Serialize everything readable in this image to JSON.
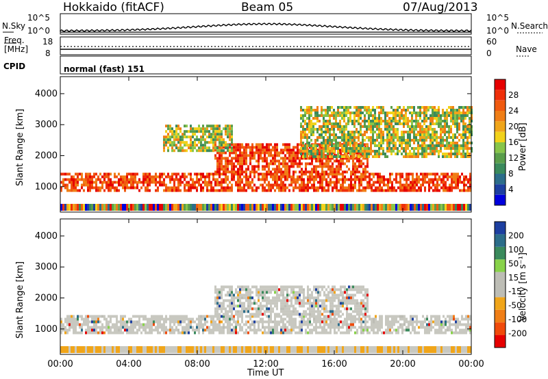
{
  "header": {
    "station": "Hokkaido (fitACF)",
    "beam": "Beam 05",
    "date": "07/Aug/2013"
  },
  "strips": {
    "nsky": {
      "label": "N.Sky",
      "tick_top": "10^5",
      "tick_bottom": "10^0"
    },
    "nsearch": {
      "label": "N.Search",
      "tick_top": "10^5",
      "tick_bottom": "10^0"
    },
    "freq": {
      "label_line1": "Freq.",
      "label_line2": "[MHz]",
      "tick_top": "18",
      "tick_bottom": "8"
    },
    "nave": {
      "label": "Nave",
      "tick_top": "60",
      "tick_bottom": "0"
    },
    "cpid": {
      "label": "CPID",
      "value": "normal (fast) 151"
    }
  },
  "chart_data": [
    {
      "type": "heatmap",
      "panel": "power",
      "ylabel": "Slant Range [km]",
      "xlabel": "",
      "y_ticks": [
        "1000",
        "2000",
        "3000",
        "4000"
      ],
      "x_ticks": [
        "00:00",
        "04:00",
        "08:00",
        "12:00",
        "16:00",
        "20:00",
        "00:00"
      ],
      "ylim": [
        180,
        4550
      ],
      "xlim_hours": [
        0,
        24
      ],
      "colorbar": {
        "label": "Power [dB]",
        "ticks": [
          "28",
          "24",
          "20",
          "16",
          "12",
          "8",
          "4"
        ],
        "colors": [
          "#0000dd",
          "#1d3fa0",
          "#2c6d8a",
          "#3a8a5c",
          "#5a9e4b",
          "#88c54a",
          "#f2d21a",
          "#f0a51a",
          "#f07e16",
          "#f05a10",
          "#ef2f0a",
          "#e60000"
        ]
      },
      "bands": [
        {
          "start": 0,
          "end": 24,
          "range_start": 850,
          "range_end": 1450,
          "level": "high"
        },
        {
          "start": 9,
          "end": 18,
          "range_start": 1500,
          "range_end": 2400,
          "level": "high"
        },
        {
          "start": 6,
          "end": 10,
          "range_start": 2200,
          "range_end": 3000,
          "level": "mid"
        },
        {
          "start": 14,
          "end": 24,
          "range_start": 2000,
          "range_end": 3600,
          "level": "mid"
        }
      ]
    },
    {
      "type": "heatmap",
      "panel": "velocity",
      "ylabel": "Slant Range [km]",
      "xlabel": "Time UT",
      "y_ticks": [
        "1000",
        "2000",
        "3000",
        "4000"
      ],
      "x_ticks": [
        "00:00",
        "04:00",
        "08:00",
        "12:00",
        "16:00",
        "20:00",
        "00:00"
      ],
      "ylim": [
        180,
        4550
      ],
      "xlim_hours": [
        0,
        24
      ],
      "colorbar": {
        "label": "Velocity [m s⁻¹]",
        "ticks": [
          "200",
          "100",
          "50",
          "15",
          "-15",
          "-50",
          "-100",
          "-200"
        ],
        "colors": [
          "#e60000",
          "#f04a0a",
          "#f07e16",
          "#f0a51a",
          "#bdbdb5",
          "#bdbdb5",
          "#88d24a",
          "#3a8a5c",
          "#2c6d8a",
          "#1d3fa0"
        ]
      },
      "bands": [
        {
          "start": 0,
          "end": 24,
          "range_start": 850,
          "range_end": 1450,
          "level": "ground"
        },
        {
          "start": 9,
          "end": 18,
          "range_start": 1500,
          "range_end": 2400,
          "level": "ground"
        }
      ]
    }
  ]
}
